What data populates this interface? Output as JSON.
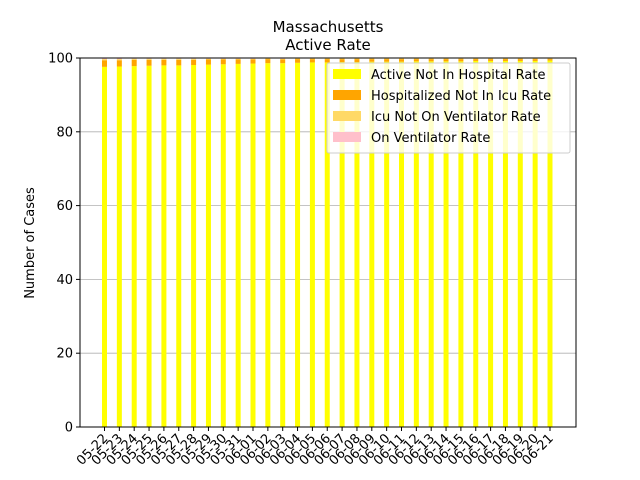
{
  "chart_data": {
    "type": "bar",
    "stacked": true,
    "title": "Massachusetts",
    "subtitle": "Active Rate",
    "xlabel": "",
    "ylabel": "Number of Cases",
    "ylim": [
      0,
      100
    ],
    "yticks": [
      0,
      20,
      40,
      60,
      80,
      100
    ],
    "grid": true,
    "legend_position": "top-right",
    "categories": [
      "05-22",
      "05-23",
      "05-24",
      "05-25",
      "05-26",
      "05-27",
      "05-28",
      "05-29",
      "05-30",
      "05-31",
      "06-01",
      "06-02",
      "06-03",
      "06-04",
      "06-05",
      "06-06",
      "06-07",
      "06-08",
      "06-09",
      "06-10",
      "06-11",
      "06-12",
      "06-13",
      "06-14",
      "06-15",
      "06-16",
      "06-17",
      "06-18",
      "06-19",
      "06-20",
      "06-21"
    ],
    "series": [
      {
        "name": "Active Not In Hospital Rate",
        "color": "#ffff00",
        "values": [
          97.6,
          97.7,
          97.8,
          97.9,
          98.0,
          98.0,
          98.1,
          98.2,
          98.3,
          98.4,
          98.5,
          98.6,
          98.6,
          98.7,
          98.8,
          98.8,
          98.9,
          98.9,
          99.0,
          99.0,
          99.0,
          99.1,
          99.1,
          99.1,
          99.1,
          99.2,
          99.2,
          99.2,
          99.2,
          99.2,
          99.3
        ]
      },
      {
        "name": "Hospitalized Not In Icu Rate",
        "color": "#ffa500",
        "values": [
          1.8,
          1.7,
          1.7,
          1.6,
          1.5,
          1.5,
          1.4,
          1.4,
          1.3,
          1.2,
          1.1,
          1.1,
          1.0,
          1.0,
          0.9,
          0.9,
          0.8,
          0.8,
          0.7,
          0.7,
          0.7,
          0.6,
          0.6,
          0.6,
          0.6,
          0.5,
          0.5,
          0.5,
          0.5,
          0.5,
          0.4
        ]
      },
      {
        "name": "Icu Not On Ventilator Rate",
        "color": "#ffd966",
        "values": [
          0.3,
          0.3,
          0.3,
          0.3,
          0.3,
          0.3,
          0.3,
          0.2,
          0.2,
          0.2,
          0.2,
          0.2,
          0.2,
          0.2,
          0.2,
          0.2,
          0.2,
          0.2,
          0.2,
          0.2,
          0.2,
          0.2,
          0.2,
          0.2,
          0.2,
          0.2,
          0.2,
          0.2,
          0.2,
          0.2,
          0.2
        ]
      },
      {
        "name": "On Ventilator Rate",
        "color": "#ffc0cb",
        "values": [
          0.3,
          0.3,
          0.2,
          0.2,
          0.2,
          0.2,
          0.2,
          0.2,
          0.2,
          0.2,
          0.2,
          0.1,
          0.2,
          0.1,
          0.1,
          0.1,
          0.1,
          0.1,
          0.1,
          0.1,
          0.1,
          0.1,
          0.1,
          0.1,
          0.1,
          0.1,
          0.1,
          0.1,
          0.1,
          0.1,
          0.1
        ]
      }
    ]
  }
}
